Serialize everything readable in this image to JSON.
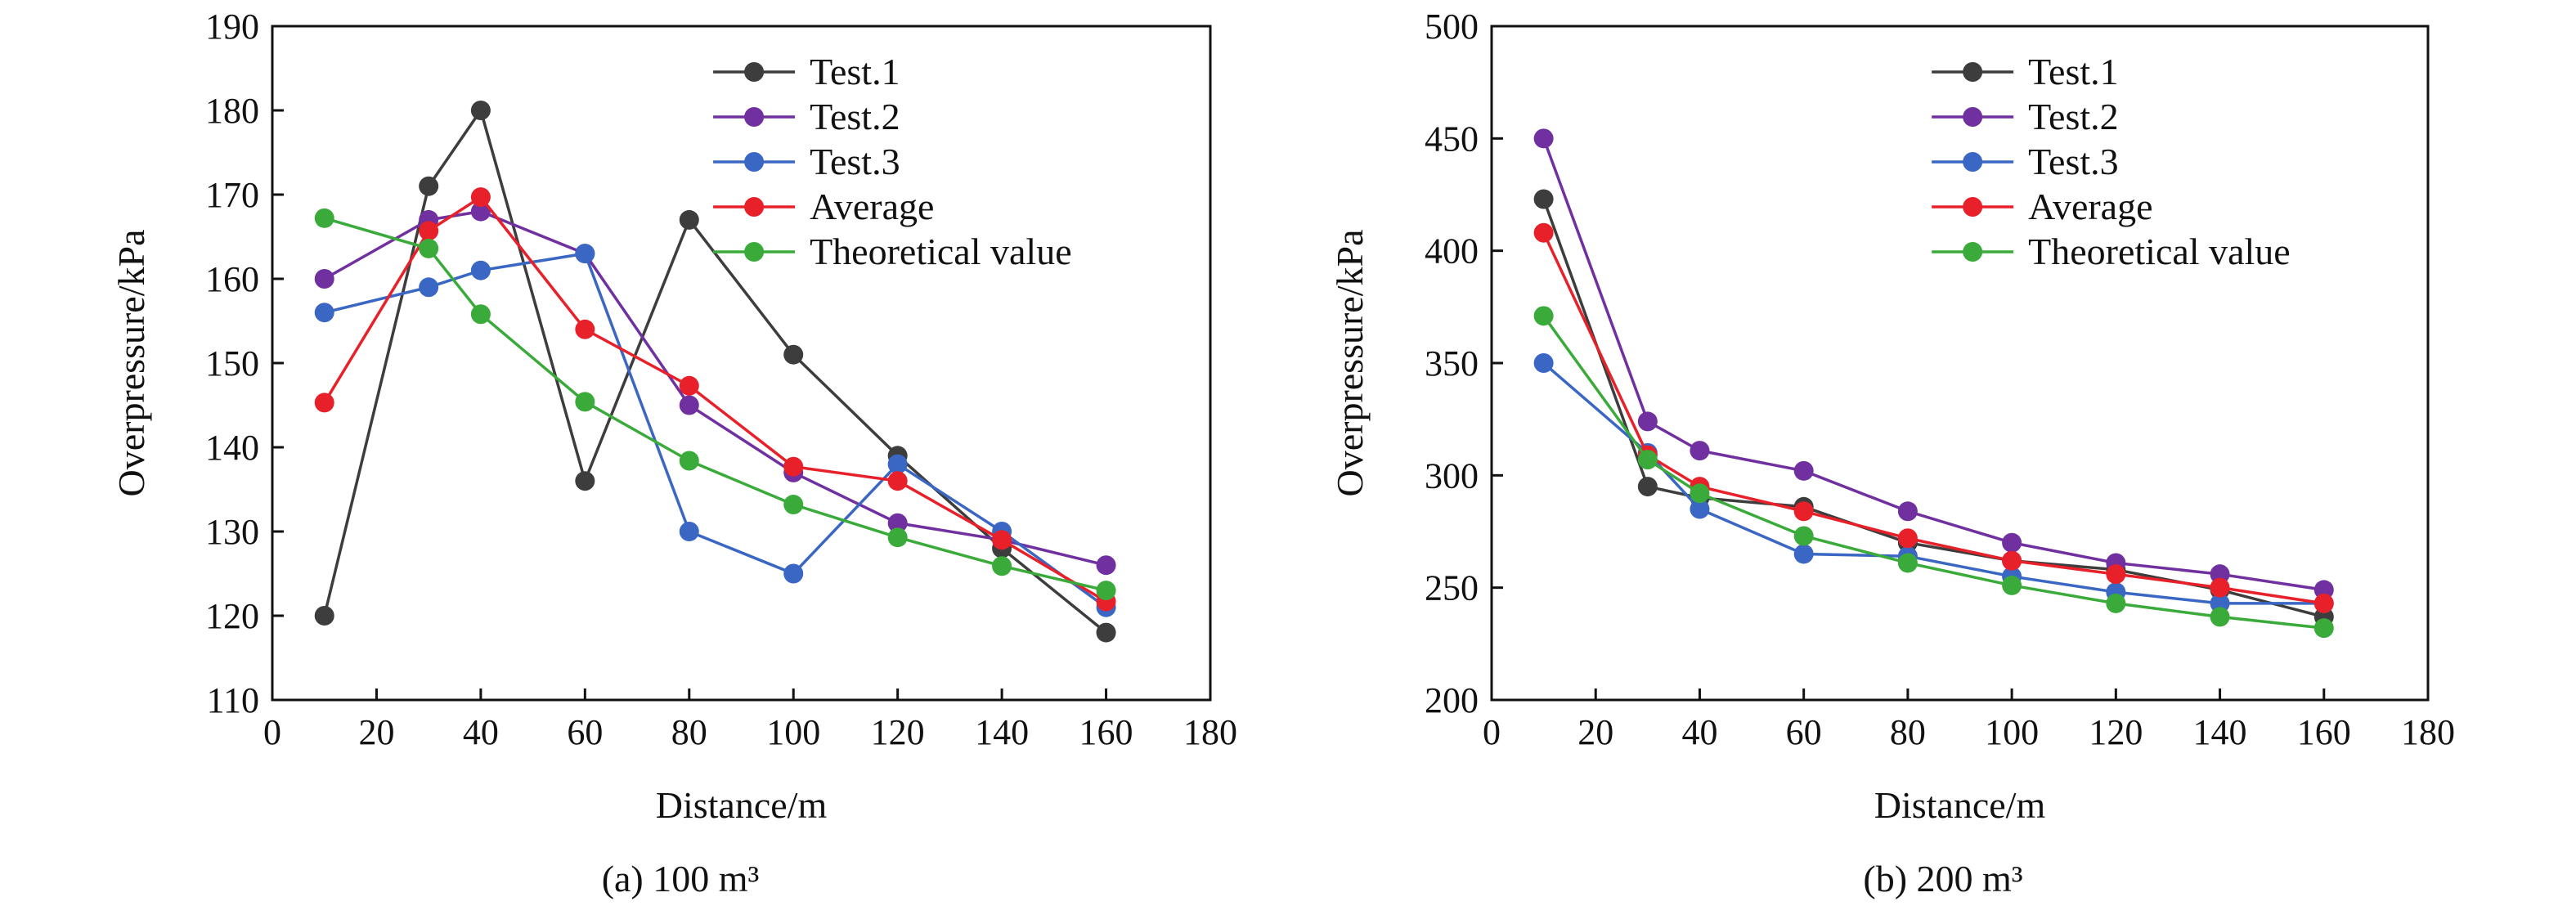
{
  "chart_data": [
    {
      "type": "line",
      "caption": "(a) 100 m³",
      "xlabel": "Distance/m",
      "ylabel": "Overpressure/kPa",
      "xlim": [
        0,
        180
      ],
      "ylim": [
        110,
        190
      ],
      "xticks": [
        0,
        20,
        40,
        60,
        80,
        100,
        120,
        140,
        160,
        180
      ],
      "yticks": [
        110,
        120,
        130,
        140,
        150,
        160,
        170,
        180,
        190
      ],
      "grid": false,
      "legend_position": "top-right",
      "x": [
        10,
        30,
        40,
        60,
        80,
        100,
        120,
        140,
        160
      ],
      "series": [
        {
          "name": "Test.1",
          "color": "#3d3d3d",
          "values": [
            120,
            171,
            180,
            136,
            167,
            151,
            139,
            128,
            118
          ]
        },
        {
          "name": "Test.2",
          "color": "#7030a0",
          "values": [
            160,
            167,
            168,
            163,
            145,
            137,
            131,
            129,
            126
          ]
        },
        {
          "name": "Test.3",
          "color": "#3a66c4",
          "values": [
            156,
            159,
            161,
            163,
            130,
            125,
            138,
            130,
            121
          ]
        },
        {
          "name": "Average",
          "color": "#e8202a",
          "values": [
            145.3,
            165.7,
            169.7,
            154,
            147.3,
            137.7,
            136,
            129,
            121.7
          ]
        },
        {
          "name": "Theoretical value",
          "color": "#3aab3a",
          "values": [
            167.2,
            163.6,
            155.8,
            145.4,
            138.4,
            133.2,
            129.3,
            125.9,
            123
          ]
        }
      ]
    },
    {
      "type": "line",
      "caption": "(b) 200 m³",
      "xlabel": "Distance/m",
      "ylabel": "Overpressure/kPa",
      "xlim": [
        0,
        180
      ],
      "ylim": [
        200,
        500
      ],
      "xticks": [
        0,
        20,
        40,
        60,
        80,
        100,
        120,
        140,
        160,
        180
      ],
      "yticks": [
        200,
        250,
        300,
        350,
        400,
        450,
        500
      ],
      "grid": false,
      "legend_position": "top-right",
      "x": [
        10,
        30,
        40,
        60,
        80,
        100,
        120,
        140,
        160
      ],
      "series": [
        {
          "name": "Test.1",
          "color": "#3d3d3d",
          "values": [
            423,
            295,
            290,
            286,
            270,
            262,
            258,
            249,
            237
          ]
        },
        {
          "name": "Test.2",
          "color": "#7030a0",
          "values": [
            450,
            324,
            311,
            302,
            284,
            270,
            261,
            256,
            249
          ]
        },
        {
          "name": "Test.3",
          "color": "#3a66c4",
          "values": [
            350,
            310,
            285,
            265,
            264,
            255,
            248,
            243,
            243
          ]
        },
        {
          "name": "Average",
          "color": "#e8202a",
          "values": [
            408,
            309,
            295,
            284,
            272,
            262,
            256,
            250,
            243
          ]
        },
        {
          "name": "Theoretical value",
          "color": "#3aab3a",
          "values": [
            371,
            307,
            292,
            273,
            261,
            251,
            243,
            237,
            232
          ]
        }
      ]
    }
  ]
}
